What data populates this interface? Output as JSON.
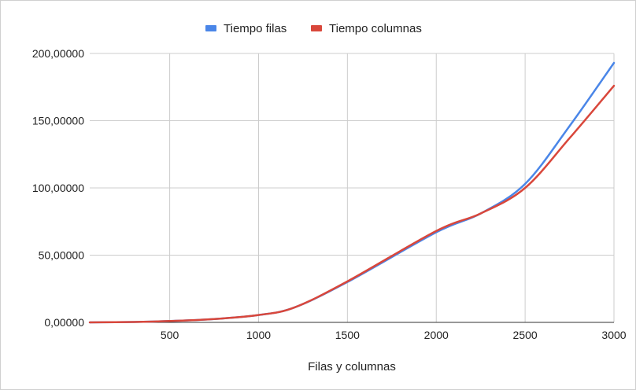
{
  "chart_data": {
    "type": "line",
    "title": "",
    "xlabel": "Filas y columnas",
    "ylabel": "",
    "xlim": [
      50,
      3000
    ],
    "ylim": [
      0,
      200
    ],
    "x_ticks": [
      500,
      1000,
      1500,
      2000,
      2500,
      3000
    ],
    "x_tick_labels": [
      "500",
      "1000",
      "1500",
      "2000",
      "2500",
      "3000"
    ],
    "y_ticks": [
      0,
      50,
      100,
      150,
      200
    ],
    "y_tick_labels": [
      "0,00000",
      "50,00000",
      "100,00000",
      "150,00000",
      "200,00000"
    ],
    "grid": true,
    "legend_position": "top",
    "x": [
      50,
      300,
      500,
      750,
      1000,
      1200,
      1500,
      2000,
      2250,
      2500,
      2750,
      3000
    ],
    "series": [
      {
        "name": "Tiempo filas",
        "color": "#4a86e8",
        "values": [
          0,
          0.3,
          1,
          2.5,
          5.5,
          11,
          30,
          67,
          81,
          103,
          146,
          193
        ]
      },
      {
        "name": "Tiempo columnas",
        "color": "#d9473b",
        "values": [
          0,
          0.3,
          1,
          2.5,
          5.5,
          11,
          30.5,
          68,
          81,
          100,
          137,
          176
        ]
      }
    ]
  }
}
